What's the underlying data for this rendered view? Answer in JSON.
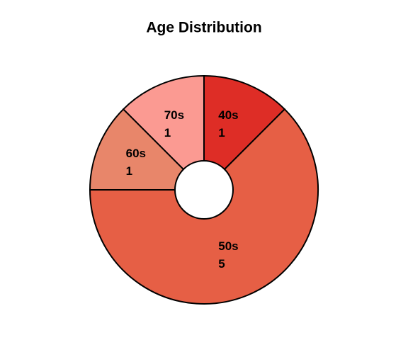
{
  "chart_data": {
    "type": "pie",
    "title": "Age Distribution",
    "categories": [
      "40s",
      "50s",
      "60s",
      "70s"
    ],
    "values": [
      1,
      5,
      1,
      1
    ],
    "colors": [
      "#de2d26",
      "#e65f45",
      "#e8866a",
      "#fb9a92"
    ]
  }
}
